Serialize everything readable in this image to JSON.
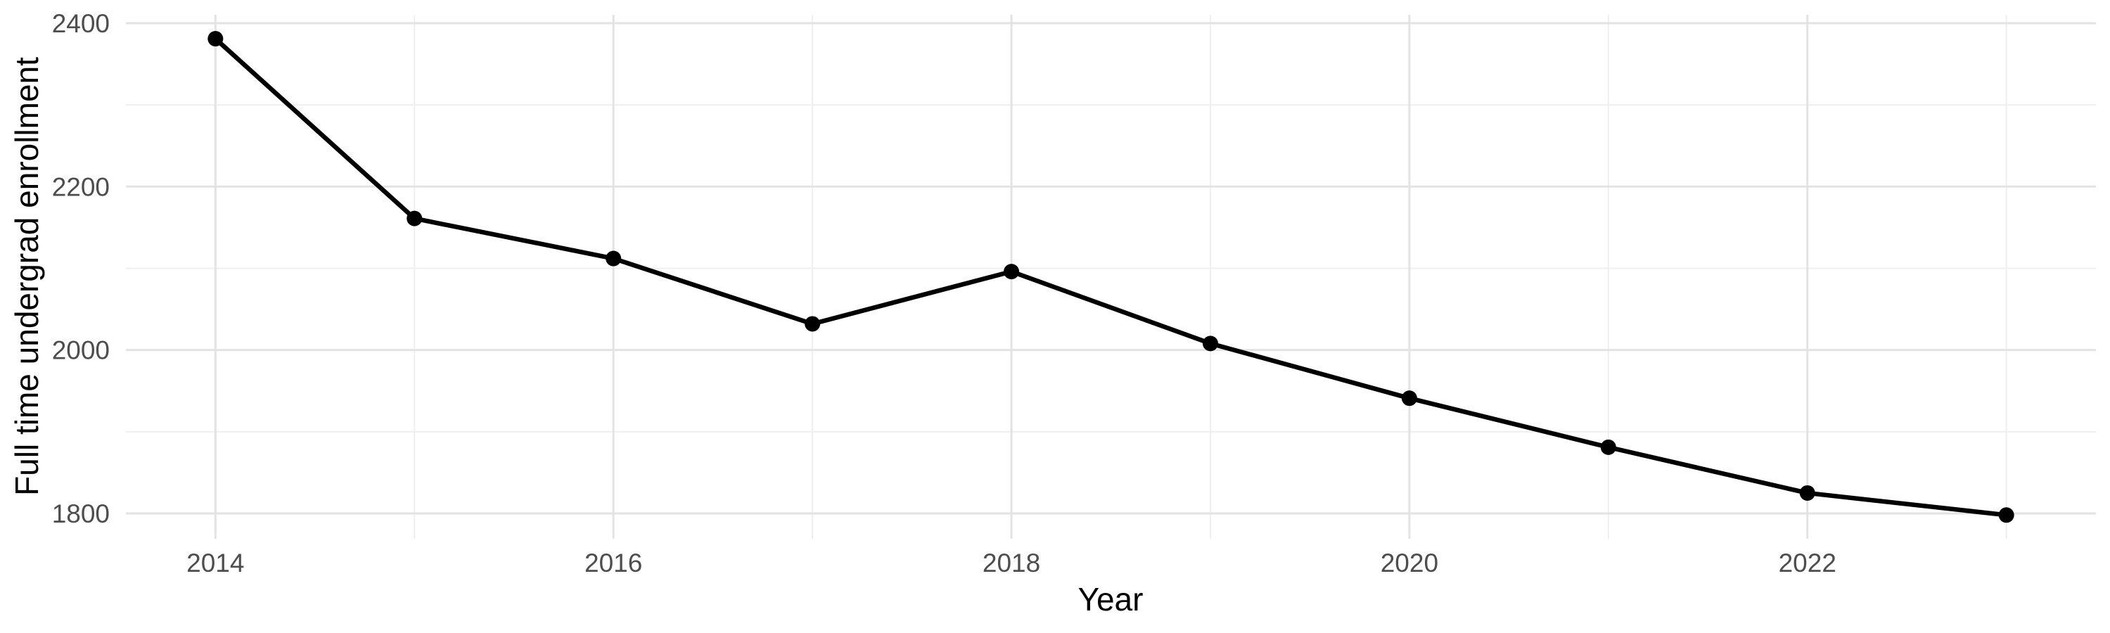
{
  "chart_data": {
    "type": "line",
    "title": "",
    "xlabel": "Year",
    "ylabel": "Full time undergrad enrollment",
    "series": [
      {
        "name": "Full time undergrad enrollment",
        "x": [
          2014,
          2015,
          2016,
          2017,
          2018,
          2019,
          2020,
          2021,
          2022,
          2023
        ],
        "values": [
          2381,
          2161,
          2112,
          2032,
          2096,
          2008,
          1941,
          1881,
          1825,
          1798
        ]
      }
    ],
    "x_domain": [
      2013.55,
      2023.45
    ],
    "y_domain": [
      1769,
      2410.3
    ],
    "x_breaks_major": [
      2014,
      2016,
      2018,
      2020,
      2022
    ],
    "x_tick_labels": [
      "2014",
      "2016",
      "2018",
      "2020",
      "2022"
    ],
    "x_breaks_minor": [
      2015,
      2017,
      2019,
      2021,
      2023
    ],
    "y_breaks_major": [
      1800,
      2000,
      2200,
      2400
    ],
    "y_tick_labels": [
      "1800",
      "2000",
      "2200",
      "2400"
    ],
    "y_breaks_minor": [
      1900,
      2100,
      2300
    ],
    "grid": true,
    "legend_position": "none",
    "colors": {
      "background": "#ffffff",
      "grid_major": "#e3e3e3",
      "grid_minor": "#efefef",
      "line": "#000000",
      "point": "#000000",
      "tick_label": "#4d4d4d",
      "axis_title": "#000000"
    }
  }
}
